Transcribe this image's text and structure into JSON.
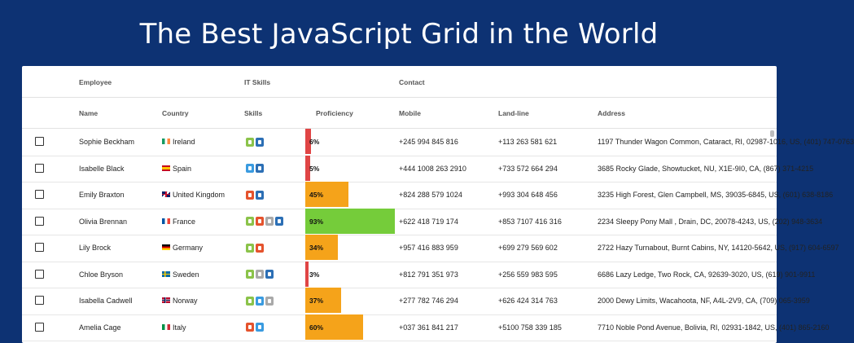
{
  "hero": {
    "title": "The Best JavaScript Grid in the World"
  },
  "grid": {
    "groups": {
      "employee": "Employee",
      "it_skills": "IT Skills",
      "contact": "Contact"
    },
    "columns": {
      "name": "Name",
      "country": "Country",
      "skills": "Skills",
      "proficiency": "Proficiency",
      "mobile": "Mobile",
      "landline": "Land-line",
      "address": "Address"
    },
    "rows": [
      {
        "name": "Sophie Beckham",
        "country": "Ireland",
        "flag": "ireland",
        "skills": [
          "green",
          "blue"
        ],
        "proficiency": 6,
        "proficiency_label": "6%",
        "mobile": "+245 994 845 816",
        "landline": "+113 263 581 621",
        "address": "1197 Thunder Wagon Common, Cataract, RI, 02987-1016, US, (401) 747-0763"
      },
      {
        "name": "Isabelle Black",
        "country": "Spain",
        "flag": "spain",
        "skills": [
          "lightblue",
          "blue"
        ],
        "proficiency": 5,
        "proficiency_label": "5%",
        "mobile": "+444 1008 263 2910",
        "landline": "+733 572 664 294",
        "address": "3685 Rocky Glade, Showtucket, NU, X1E-9I0, CA, (867) 371-4215"
      },
      {
        "name": "Emily Braxton",
        "country": "United Kingdom",
        "flag": "uk",
        "skills": [
          "orange",
          "blue"
        ],
        "proficiency": 45,
        "proficiency_label": "45%",
        "mobile": "+824 288 579 1024",
        "landline": "+993 304 648 456",
        "address": "3235 High Forest, Glen Campbell, MS, 39035-6845, US, (601) 638-8186"
      },
      {
        "name": "Olivia Brennan",
        "country": "France",
        "flag": "france",
        "skills": [
          "green",
          "orange",
          "gray",
          "blue"
        ],
        "proficiency": 93,
        "proficiency_label": "93%",
        "mobile": "+622 418 719 174",
        "landline": "+853 7107 416 316",
        "address": "2234 Sleepy Pony Mall , Drain, DC, 20078-4243, US, (202) 948-3634"
      },
      {
        "name": "Lily Brock",
        "country": "Germany",
        "flag": "germany",
        "skills": [
          "green",
          "orange"
        ],
        "proficiency": 34,
        "proficiency_label": "34%",
        "mobile": "+957 416 883 959",
        "landline": "+699 279 569 602",
        "address": "2722 Hazy Turnabout, Burnt Cabins, NY, 14120-5642, US, (917) 604-6597"
      },
      {
        "name": "Chloe Bryson",
        "country": "Sweden",
        "flag": "sweden",
        "skills": [
          "green",
          "gray",
          "blue"
        ],
        "proficiency": 3,
        "proficiency_label": "3%",
        "mobile": "+812 791 351 973",
        "landline": "+256 559 983 595",
        "address": "6686 Lazy Ledge, Two Rock, CA, 92639-3020, US, (619) 901-9911"
      },
      {
        "name": "Isabella Cadwell",
        "country": "Norway",
        "flag": "norway",
        "skills": [
          "green",
          "lightblue",
          "gray"
        ],
        "proficiency": 37,
        "proficiency_label": "37%",
        "mobile": "+277 782 746 294",
        "landline": "+626 424 314 763",
        "address": "2000 Dewy Limits, Wacahoota, NF, A4L-2V9, CA, (709) 065-3959"
      },
      {
        "name": "Amelia Cage",
        "country": "Italy",
        "flag": "italy",
        "skills": [
          "orange",
          "lightblue"
        ],
        "proficiency": 60,
        "proficiency_label": "60%",
        "mobile": "+037 361 841 217",
        "landline": "+5100 758 339 185",
        "address": "7710 Noble Pond Avenue, Bolivia, RI, 02931-1842, US, (401) 865-2160"
      }
    ]
  },
  "colors": {
    "background": "#0d3273",
    "bar_low": "#e04545",
    "bar_mid": "#f5a31a",
    "bar_high": "#75cc3a"
  }
}
